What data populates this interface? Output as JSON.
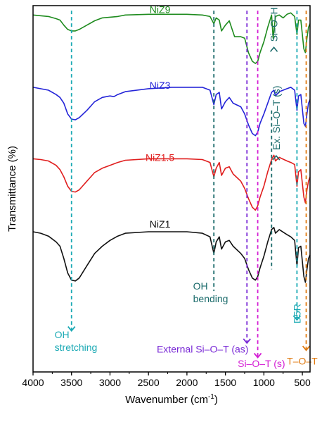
{
  "chart_data": {
    "type": "line",
    "xlabel": "Wavenumber (cm⁻¹)",
    "ylabel": "Transmittance (%)",
    "xlim": [
      4000,
      400
    ],
    "x_reversed": true,
    "y_ticks_shown": false,
    "xticks": [
      "4000",
      "3500",
      "3000",
      "2500",
      "2000",
      "1500",
      "1000",
      "500"
    ],
    "xtick_values": [
      4000,
      3500,
      3000,
      2500,
      2000,
      1500,
      1000,
      500
    ],
    "series": [
      {
        "name": "NiZ9",
        "color": "#1e8b1e",
        "offset": 3,
        "points": [
          [
            4000,
            0.92
          ],
          [
            3800,
            0.9
          ],
          [
            3700,
            0.87
          ],
          [
            3650,
            0.85
          ],
          [
            3600,
            0.78
          ],
          [
            3550,
            0.72
          ],
          [
            3500,
            0.7
          ],
          [
            3450,
            0.7
          ],
          [
            3400,
            0.72
          ],
          [
            3300,
            0.78
          ],
          [
            3200,
            0.84
          ],
          [
            3100,
            0.88
          ],
          [
            3000,
            0.89
          ],
          [
            2900,
            0.9
          ],
          [
            2800,
            0.92
          ],
          [
            2500,
            0.93
          ],
          [
            2200,
            0.93
          ],
          [
            2000,
            0.93
          ],
          [
            1800,
            0.92
          ],
          [
            1700,
            0.9
          ],
          [
            1650,
            0.8
          ],
          [
            1620,
            0.88
          ],
          [
            1580,
            0.85
          ],
          [
            1550,
            0.7
          ],
          [
            1500,
            0.78
          ],
          [
            1450,
            0.84
          ],
          [
            1380,
            0.62
          ],
          [
            1300,
            0.62
          ],
          [
            1250,
            0.6
          ],
          [
            1200,
            0.4
          ],
          [
            1150,
            0.28
          ],
          [
            1110,
            0.25
          ],
          [
            1080,
            0.28
          ],
          [
            1050,
            0.4
          ],
          [
            1000,
            0.55
          ],
          [
            950,
            0.75
          ],
          [
            900,
            0.92
          ],
          [
            880,
            0.6
          ],
          [
            850,
            0.9
          ],
          [
            800,
            0.92
          ],
          [
            750,
            0.88
          ],
          [
            700,
            0.93
          ],
          [
            650,
            0.95
          ],
          [
            600,
            0.9
          ],
          [
            570,
            0.65
          ],
          [
            550,
            0.85
          ],
          [
            520,
            0.85
          ],
          [
            480,
            0.45
          ],
          [
            460,
            0.4
          ],
          [
            440,
            0.6
          ],
          [
            420,
            0.75
          ],
          [
            400,
            0.8
          ]
        ]
      },
      {
        "name": "NiZ3",
        "color": "#2424d8",
        "offset": 2,
        "points": [
          [
            4000,
            0.92
          ],
          [
            3800,
            0.88
          ],
          [
            3700,
            0.82
          ],
          [
            3650,
            0.78
          ],
          [
            3600,
            0.7
          ],
          [
            3550,
            0.55
          ],
          [
            3500,
            0.48
          ],
          [
            3450,
            0.47
          ],
          [
            3400,
            0.5
          ],
          [
            3300,
            0.6
          ],
          [
            3200,
            0.72
          ],
          [
            3100,
            0.78
          ],
          [
            3000,
            0.8
          ],
          [
            2950,
            0.79
          ],
          [
            2900,
            0.82
          ],
          [
            2800,
            0.86
          ],
          [
            2500,
            0.9
          ],
          [
            2200,
            0.92
          ],
          [
            2000,
            0.92
          ],
          [
            1800,
            0.92
          ],
          [
            1700,
            0.88
          ],
          [
            1650,
            0.68
          ],
          [
            1620,
            0.82
          ],
          [
            1580,
            0.85
          ],
          [
            1550,
            0.62
          ],
          [
            1500,
            0.72
          ],
          [
            1450,
            0.78
          ],
          [
            1400,
            0.7
          ],
          [
            1300,
            0.65
          ],
          [
            1250,
            0.55
          ],
          [
            1200,
            0.4
          ],
          [
            1150,
            0.28
          ],
          [
            1110,
            0.25
          ],
          [
            1080,
            0.3
          ],
          [
            1050,
            0.42
          ],
          [
            1000,
            0.55
          ],
          [
            950,
            0.7
          ],
          [
            900,
            0.85
          ],
          [
            870,
            0.88
          ],
          [
            850,
            0.8
          ],
          [
            800,
            0.86
          ],
          [
            700,
            0.9
          ],
          [
            650,
            0.92
          ],
          [
            600,
            0.88
          ],
          [
            570,
            0.6
          ],
          [
            550,
            0.8
          ],
          [
            520,
            0.82
          ],
          [
            480,
            0.42
          ],
          [
            460,
            0.38
          ],
          [
            440,
            0.55
          ],
          [
            420,
            0.7
          ],
          [
            400,
            0.75
          ]
        ]
      },
      {
        "name": "NiZ1.5",
        "color": "#e01e1e",
        "offset": 1,
        "points": [
          [
            4000,
            0.93
          ],
          [
            3900,
            0.92
          ],
          [
            3800,
            0.9
          ],
          [
            3700,
            0.84
          ],
          [
            3650,
            0.78
          ],
          [
            3600,
            0.68
          ],
          [
            3550,
            0.55
          ],
          [
            3500,
            0.48
          ],
          [
            3450,
            0.47
          ],
          [
            3400,
            0.5
          ],
          [
            3300,
            0.62
          ],
          [
            3200,
            0.74
          ],
          [
            3100,
            0.8
          ],
          [
            3000,
            0.84
          ],
          [
            2900,
            0.88
          ],
          [
            2800,
            0.91
          ],
          [
            2500,
            0.93
          ],
          [
            2200,
            0.93
          ],
          [
            2000,
            0.93
          ],
          [
            1800,
            0.92
          ],
          [
            1700,
            0.88
          ],
          [
            1650,
            0.68
          ],
          [
            1620,
            0.8
          ],
          [
            1580,
            0.88
          ],
          [
            1550,
            0.7
          ],
          [
            1500,
            0.8
          ],
          [
            1450,
            0.82
          ],
          [
            1400,
            0.72
          ],
          [
            1300,
            0.62
          ],
          [
            1250,
            0.52
          ],
          [
            1200,
            0.38
          ],
          [
            1150,
            0.26
          ],
          [
            1110,
            0.22
          ],
          [
            1080,
            0.28
          ],
          [
            1050,
            0.4
          ],
          [
            1000,
            0.55
          ],
          [
            950,
            0.75
          ],
          [
            900,
            0.92
          ],
          [
            870,
            0.98
          ],
          [
            850,
            0.9
          ],
          [
            800,
            0.95
          ],
          [
            700,
            0.9
          ],
          [
            650,
            0.88
          ],
          [
            600,
            0.85
          ],
          [
            570,
            0.55
          ],
          [
            550,
            0.75
          ],
          [
            520,
            0.78
          ],
          [
            480,
            0.4
          ],
          [
            460,
            0.32
          ],
          [
            440,
            0.5
          ],
          [
            420,
            0.62
          ],
          [
            400,
            0.68
          ]
        ]
      },
      {
        "name": "NiZ1",
        "color": "#111111",
        "offset": 0,
        "points": [
          [
            4000,
            0.92
          ],
          [
            3900,
            0.9
          ],
          [
            3800,
            0.86
          ],
          [
            3700,
            0.78
          ],
          [
            3650,
            0.72
          ],
          [
            3600,
            0.55
          ],
          [
            3550,
            0.35
          ],
          [
            3500,
            0.25
          ],
          [
            3450,
            0.24
          ],
          [
            3400,
            0.28
          ],
          [
            3300,
            0.45
          ],
          [
            3200,
            0.62
          ],
          [
            3100,
            0.72
          ],
          [
            3000,
            0.8
          ],
          [
            2900,
            0.86
          ],
          [
            2800,
            0.9
          ],
          [
            2500,
            0.92
          ],
          [
            2200,
            0.92
          ],
          [
            2000,
            0.92
          ],
          [
            1800,
            0.9
          ],
          [
            1700,
            0.85
          ],
          [
            1650,
            0.62
          ],
          [
            1620,
            0.78
          ],
          [
            1580,
            0.85
          ],
          [
            1550,
            0.68
          ],
          [
            1500,
            0.78
          ],
          [
            1450,
            0.8
          ],
          [
            1400,
            0.72
          ],
          [
            1300,
            0.62
          ],
          [
            1250,
            0.55
          ],
          [
            1200,
            0.4
          ],
          [
            1150,
            0.28
          ],
          [
            1110,
            0.25
          ],
          [
            1080,
            0.3
          ],
          [
            1050,
            0.42
          ],
          [
            1000,
            0.58
          ],
          [
            950,
            0.78
          ],
          [
            900,
            0.95
          ],
          [
            870,
            0.98
          ],
          [
            850,
            0.9
          ],
          [
            800,
            0.95
          ],
          [
            700,
            0.88
          ],
          [
            650,
            0.85
          ],
          [
            600,
            0.8
          ],
          [
            570,
            0.45
          ],
          [
            550,
            0.7
          ],
          [
            520,
            0.72
          ],
          [
            480,
            0.3
          ],
          [
            460,
            0.22
          ],
          [
            440,
            0.4
          ],
          [
            420,
            0.55
          ],
          [
            400,
            0.6
          ]
        ]
      }
    ],
    "series_labels": [
      {
        "text": "NiZ9",
        "x": 2350,
        "y": 3.95
      },
      {
        "text": "NiZ3",
        "x": 2350,
        "y": 2.9
      },
      {
        "text": "NiZ1.5",
        "x": 2350,
        "y": 1.9
      },
      {
        "text": "NiZ1",
        "x": 2350,
        "y": 0.98
      }
    ],
    "guide_lines": [
      {
        "x": 3500,
        "color": "#1aa9b4",
        "y_from": -0.45,
        "y_to": 3.98,
        "arrow": true,
        "label_lines": [
          "OH",
          "stretching"
        ],
        "label_color": "#1aa9b4",
        "label_x": 3720,
        "label_y": -0.55,
        "label_anchor": "start"
      },
      {
        "x": 1650,
        "color": "#1b6b6b",
        "y_from": 0.1,
        "y_to": 3.98,
        "arrow": false,
        "label_lines": [
          "OH",
          "bending"
        ],
        "label_color": "#1b6b6b",
        "label_x": 1920,
        "label_y": 0.12,
        "label_anchor": "start"
      },
      {
        "x": 1220,
        "color": "#7a2ad6",
        "y_from": -0.62,
        "y_to": 3.98,
        "arrow": true,
        "label_lines": [
          "External Si–O–T (as)"
        ],
        "label_color": "#7a2ad6",
        "label_x": 1200,
        "label_y": -0.75,
        "label_anchor": "end"
      },
      {
        "x": 1080,
        "color": "#d41ed4",
        "y_from": -0.82,
        "y_to": 3.98,
        "arrow": true,
        "label_lines": [
          "Si–O–T (s)"
        ],
        "label_color": "#d41ed4",
        "label_x": 1340,
        "label_y": -0.95,
        "label_anchor": "start"
      },
      {
        "x": 900,
        "color": "#1b6b6b",
        "y_from": 0.4,
        "y_to": 2.6,
        "arrow": false,
        "label_lines": [],
        "label_color": "#1b6b6b"
      },
      {
        "x": 570,
        "color": "#1aa9b4",
        "y_from": -0.3,
        "y_to": 3.98,
        "arrow": true,
        "label_lines": [],
        "label_color": "#1aa9b4"
      },
      {
        "x": 450,
        "color": "#e07a10",
        "y_from": -0.72,
        "y_to": 3.98,
        "arrow": true,
        "label_lines": [
          "T–O–T"
        ],
        "label_color": "#e07a10",
        "label_x": 700,
        "label_y": -0.92,
        "label_anchor": "start"
      }
    ],
    "rotated_labels": [
      {
        "text": "Si–O–H",
        "color": "#1b6b6b",
        "x": 870,
        "y": 3.55,
        "arrow": true
      },
      {
        "text": "Ex. Si–O–T (s)",
        "color": "#1b6b6b",
        "x": 840,
        "y": 2.05,
        "arrow": true
      },
      {
        "text": "D5R",
        "color": "#1aa9b4",
        "x": 570,
        "y": -0.35,
        "arrow": false
      }
    ]
  }
}
